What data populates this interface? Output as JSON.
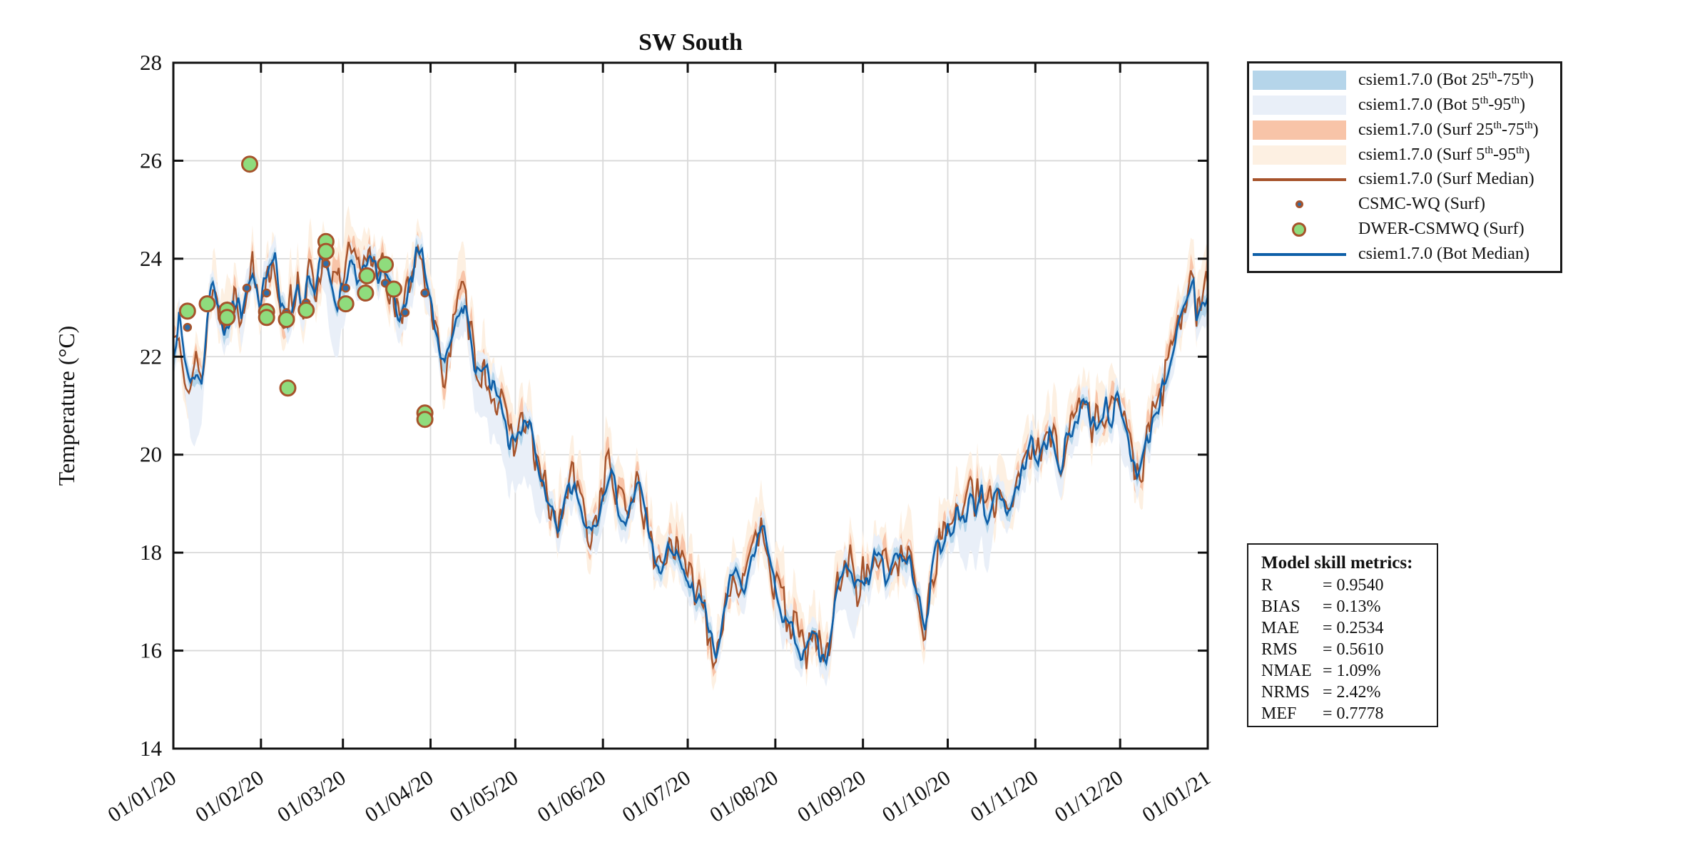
{
  "figure": {
    "title": "SW South",
    "ylabel": "Temperature (°C)"
  },
  "chart_data": {
    "type": "line",
    "title": "SW South",
    "xlabel": "",
    "ylabel": "Temperature (°C)",
    "ylim": [
      14,
      28
    ],
    "yticks": [
      14,
      16,
      18,
      20,
      22,
      24,
      26,
      28
    ],
    "grid": true,
    "x_total_days": 366,
    "xtick_day_offsets": [
      0,
      31,
      60,
      91,
      121,
      152,
      182,
      213,
      244,
      274,
      305,
      335,
      366
    ],
    "xtick_labels": [
      "01/01/20",
      "01/02/20",
      "01/03/20",
      "01/04/20",
      "01/05/20",
      "01/06/20",
      "01/07/20",
      "01/08/20",
      "01/09/20",
      "01/10/20",
      "01/11/20",
      "01/12/20",
      "01/01/21"
    ],
    "colors": {
      "bot_band_25_75": "#b5d5ea",
      "bot_band_5_95": "#e9eff8",
      "surf_band_25_75": "#f8c4a8",
      "surf_band_5_95": "#fdf0e2",
      "surf_median": "#a6532b",
      "bot_median": "#0e5fa8",
      "dwer_marker_fill": "#8fdc7d",
      "csmc_marker_fill": "#2e6da8",
      "marker_edge": "#a6532b",
      "grid": "#d9d9d9",
      "axis": "#111111"
    },
    "series": [
      {
        "name": "csiem1.7.0 (Bot Median)",
        "type": "line",
        "color": "#0e5fa8",
        "points_day_temp": [
          [
            0,
            22.2
          ],
          [
            2,
            22.7
          ],
          [
            4,
            21.9
          ],
          [
            6,
            21.5
          ],
          [
            8,
            21.7
          ],
          [
            10,
            21.3
          ],
          [
            12,
            22.9
          ],
          [
            14,
            23.4
          ],
          [
            16,
            23.1
          ],
          [
            18,
            22.5
          ],
          [
            20,
            22.8
          ],
          [
            22,
            23.2
          ],
          [
            24,
            22.9
          ],
          [
            26,
            23.6
          ],
          [
            28,
            23.7
          ],
          [
            30,
            23.1
          ],
          [
            32,
            23.4
          ],
          [
            34,
            23.8
          ],
          [
            36,
            23.9
          ],
          [
            38,
            22.8
          ],
          [
            40,
            22.7
          ],
          [
            42,
            23.1
          ],
          [
            44,
            23.5
          ],
          [
            46,
            23.1
          ],
          [
            48,
            23.6
          ],
          [
            50,
            23.3
          ],
          [
            52,
            23.9
          ],
          [
            54,
            24.1
          ],
          [
            56,
            23.6
          ],
          [
            58,
            23.2
          ],
          [
            60,
            23.4
          ],
          [
            62,
            23.9
          ],
          [
            64,
            24.0
          ],
          [
            66,
            23.5
          ],
          [
            68,
            23.8
          ],
          [
            70,
            23.9
          ],
          [
            72,
            23.7
          ],
          [
            74,
            23.9
          ],
          [
            76,
            23.4
          ],
          [
            78,
            23.1
          ],
          [
            80,
            22.5
          ],
          [
            82,
            22.9
          ],
          [
            84,
            23.6
          ],
          [
            86,
            24.2
          ],
          [
            88,
            24.0
          ],
          [
            90,
            23.2
          ],
          [
            92,
            22.6
          ],
          [
            94,
            22.0
          ],
          [
            96,
            21.8
          ],
          [
            98,
            22.3
          ],
          [
            100,
            22.9
          ],
          [
            102,
            23.2
          ],
          [
            104,
            22.7
          ],
          [
            106,
            22.1
          ],
          [
            108,
            21.8
          ],
          [
            110,
            21.7
          ],
          [
            112,
            21.4
          ],
          [
            114,
            21.1
          ],
          [
            116,
            20.8
          ],
          [
            118,
            20.4
          ],
          [
            120,
            20.2
          ],
          [
            122,
            20.5
          ],
          [
            124,
            20.8
          ],
          [
            126,
            20.6
          ],
          [
            128,
            19.9
          ],
          [
            130,
            19.4
          ],
          [
            132,
            19.0
          ],
          [
            134,
            18.7
          ],
          [
            136,
            18.5
          ],
          [
            138,
            18.8
          ],
          [
            140,
            19.2
          ],
          [
            142,
            19.4
          ],
          [
            144,
            19.0
          ],
          [
            146,
            18.6
          ],
          [
            148,
            18.4
          ],
          [
            150,
            18.7
          ],
          [
            152,
            19.3
          ],
          [
            154,
            19.7
          ],
          [
            156,
            19.4
          ],
          [
            158,
            19.0
          ],
          [
            160,
            18.7
          ],
          [
            162,
            19.0
          ],
          [
            164,
            19.4
          ],
          [
            166,
            19.0
          ],
          [
            168,
            18.4
          ],
          [
            170,
            17.9
          ],
          [
            172,
            17.6
          ],
          [
            174,
            17.9
          ],
          [
            176,
            18.3
          ],
          [
            178,
            17.9
          ],
          [
            180,
            17.5
          ],
          [
            182,
            17.4
          ],
          [
            184,
            17.1
          ],
          [
            186,
            17.3
          ],
          [
            188,
            16.8
          ],
          [
            190,
            16.2
          ],
          [
            192,
            15.95
          ],
          [
            194,
            16.6
          ],
          [
            196,
            17.2
          ],
          [
            198,
            17.5
          ],
          [
            200,
            17.3
          ],
          [
            202,
            17.1
          ],
          [
            204,
            17.5
          ],
          [
            206,
            18.0
          ],
          [
            208,
            18.7
          ],
          [
            210,
            18.2
          ],
          [
            212,
            17.5
          ],
          [
            214,
            17.1
          ],
          [
            216,
            16.8
          ],
          [
            218,
            16.5
          ],
          [
            220,
            16.2
          ],
          [
            222,
            16.0
          ],
          [
            224,
            15.9
          ],
          [
            226,
            16.2
          ],
          [
            228,
            16.0
          ],
          [
            230,
            15.7
          ],
          [
            232,
            16.1
          ],
          [
            234,
            16.9
          ],
          [
            236,
            17.4
          ],
          [
            238,
            17.7
          ],
          [
            240,
            17.5
          ],
          [
            242,
            17.2
          ],
          [
            244,
            17.6
          ],
          [
            246,
            17.4
          ],
          [
            248,
            18.1
          ],
          [
            250,
            17.8
          ],
          [
            252,
            17.5
          ],
          [
            254,
            17.8
          ],
          [
            256,
            18.0
          ],
          [
            258,
            17.7
          ],
          [
            260,
            17.9
          ],
          [
            262,
            17.5
          ],
          [
            264,
            16.9
          ],
          [
            266,
            16.3
          ],
          [
            268,
            17.3
          ],
          [
            270,
            17.9
          ],
          [
            272,
            18.2
          ],
          [
            274,
            18.4
          ],
          [
            276,
            18.6
          ],
          [
            278,
            18.8
          ],
          [
            280,
            18.7
          ],
          [
            282,
            19.0
          ],
          [
            284,
            18.9
          ],
          [
            286,
            19.1
          ],
          [
            288,
            18.8
          ],
          [
            290,
            19.0
          ],
          [
            292,
            19.3
          ],
          [
            294,
            19.1
          ],
          [
            296,
            18.9
          ],
          [
            298,
            19.3
          ],
          [
            300,
            19.7
          ],
          [
            302,
            20.0
          ],
          [
            304,
            20.2
          ],
          [
            306,
            19.9
          ],
          [
            308,
            20.1
          ],
          [
            310,
            20.4
          ],
          [
            312,
            20.1
          ],
          [
            314,
            19.9
          ],
          [
            316,
            20.3
          ],
          [
            318,
            20.6
          ],
          [
            320,
            20.9
          ],
          [
            322,
            21.1
          ],
          [
            324,
            20.8
          ],
          [
            326,
            20.6
          ],
          [
            328,
            20.8
          ],
          [
            330,
            21.0
          ],
          [
            332,
            20.9
          ],
          [
            334,
            21.1
          ],
          [
            336,
            20.7
          ],
          [
            338,
            20.2
          ],
          [
            340,
            19.8
          ],
          [
            342,
            19.6
          ],
          [
            344,
            20.0
          ],
          [
            346,
            20.5
          ],
          [
            348,
            20.9
          ],
          [
            350,
            21.3
          ],
          [
            352,
            21.8
          ],
          [
            354,
            22.2
          ],
          [
            356,
            22.6
          ],
          [
            358,
            22.9
          ],
          [
            360,
            23.3
          ],
          [
            361,
            23.4
          ],
          [
            362,
            22.7
          ],
          [
            364,
            23.1
          ],
          [
            366,
            23.3
          ]
        ]
      },
      {
        "name": "csiem1.7.0 (Surf Median)",
        "type": "line",
        "color": "#a6532b",
        "derived_from": "bot_median",
        "mean_offset": 0.08,
        "diurnal_spike_amplitude": 0.45
      }
    ],
    "bands": [
      {
        "name": "csiem1.7.0 (Bot 25th-75th)",
        "around": "bot_median",
        "color": "#b5d5ea",
        "halfwidth_up": 0.15,
        "halfwidth_down": 0.22
      },
      {
        "name": "csiem1.7.0 (Bot 5th-95th)",
        "around": "bot_median",
        "color": "#e9eff8",
        "halfwidth_up": 0.32,
        "halfwidth_down": 1.1
      },
      {
        "name": "csiem1.7.0 (Surf 25th-75th)",
        "around": "surf_median",
        "color": "#f8c4a8",
        "halfwidth_up": 0.3,
        "halfwidth_down": 0.25
      },
      {
        "name": "csiem1.7.0 (Surf 5th-95th)",
        "around": "surf_median",
        "color": "#fdf0e2",
        "halfwidth_up": 0.85,
        "halfwidth_down": 0.55
      }
    ],
    "observations": [
      {
        "name": "DWER-CSMWQ (Surf)",
        "type": "scatter",
        "marker": {
          "radius": 10.5,
          "fill": "#8fdc7d",
          "edge": "#a6532b",
          "edge_width": 3
        },
        "points_day_temp": [
          [
            5,
            22.93
          ],
          [
            12,
            23.08
          ],
          [
            19,
            22.95
          ],
          [
            19,
            22.8
          ],
          [
            27,
            25.93
          ],
          [
            33,
            22.92
          ],
          [
            33,
            22.8
          ],
          [
            40,
            22.76
          ],
          [
            40.5,
            21.36
          ],
          [
            47,
            22.95
          ],
          [
            54,
            24.35
          ],
          [
            54,
            24.15
          ],
          [
            61,
            23.08
          ],
          [
            68,
            23.3
          ],
          [
            68.5,
            23.65
          ],
          [
            75,
            23.88
          ],
          [
            78,
            23.38
          ],
          [
            89,
            20.85
          ],
          [
            89,
            20.72
          ]
        ]
      },
      {
        "name": "CSMC-WQ (Surf)",
        "type": "scatter",
        "marker": {
          "radius": 5,
          "fill": "#2e6da8",
          "edge": "#a6532b",
          "edge_width": 2.5
        },
        "points_day_temp": [
          [
            5,
            22.6
          ],
          [
            12,
            23.1
          ],
          [
            19,
            22.8
          ],
          [
            26,
            23.4
          ],
          [
            33,
            23.3
          ],
          [
            40,
            22.9
          ],
          [
            47,
            23.1
          ],
          [
            54,
            23.9
          ],
          [
            61,
            23.4
          ],
          [
            68,
            23.6
          ],
          [
            75,
            23.5
          ],
          [
            82,
            22.9
          ],
          [
            89,
            23.3
          ]
        ]
      }
    ],
    "legend_position": "outside-top-right"
  },
  "legend": {
    "entries": [
      {
        "label": "csiem1.7.0 (Bot 25th-75th)",
        "swatch": "band",
        "color": "#b5d5ea"
      },
      {
        "label": "csiem1.7.0 (Bot 5th-95th)",
        "swatch": "band",
        "color": "#e9eff8"
      },
      {
        "label": "csiem1.7.0 (Surf 25th-75th)",
        "swatch": "band",
        "color": "#f8c4a8"
      },
      {
        "label": "csiem1.7.0 (Surf 5th-95th)",
        "swatch": "band",
        "color": "#fdf0e2"
      },
      {
        "label": "csiem1.7.0 (Surf Median)",
        "swatch": "line",
        "color": "#a6532b"
      },
      {
        "label": "CSMC-WQ (Surf)",
        "swatch": "dot",
        "color": "#2e6da8",
        "edge": "#a6532b",
        "size": 11
      },
      {
        "label": "DWER-CSMWQ (Surf)",
        "swatch": "dot",
        "color": "#8fdc7d",
        "edge": "#a6532b",
        "size": 20
      },
      {
        "label": "csiem1.7.0 (Bot Median)",
        "swatch": "line",
        "color": "#0e5fa8"
      }
    ]
  },
  "metrics": {
    "title": "Model skill metrics:",
    "rows": [
      {
        "name": "R",
        "value": "0.9540"
      },
      {
        "name": "BIAS",
        "value": "0.13%"
      },
      {
        "name": "MAE",
        "value": "0.2534"
      },
      {
        "name": "RMS",
        "value": "0.5610"
      },
      {
        "name": "NMAE",
        "value": "1.09%"
      },
      {
        "name": "NRMS",
        "value": "2.42%"
      },
      {
        "name": "MEF",
        "value": "0.7778"
      }
    ]
  }
}
